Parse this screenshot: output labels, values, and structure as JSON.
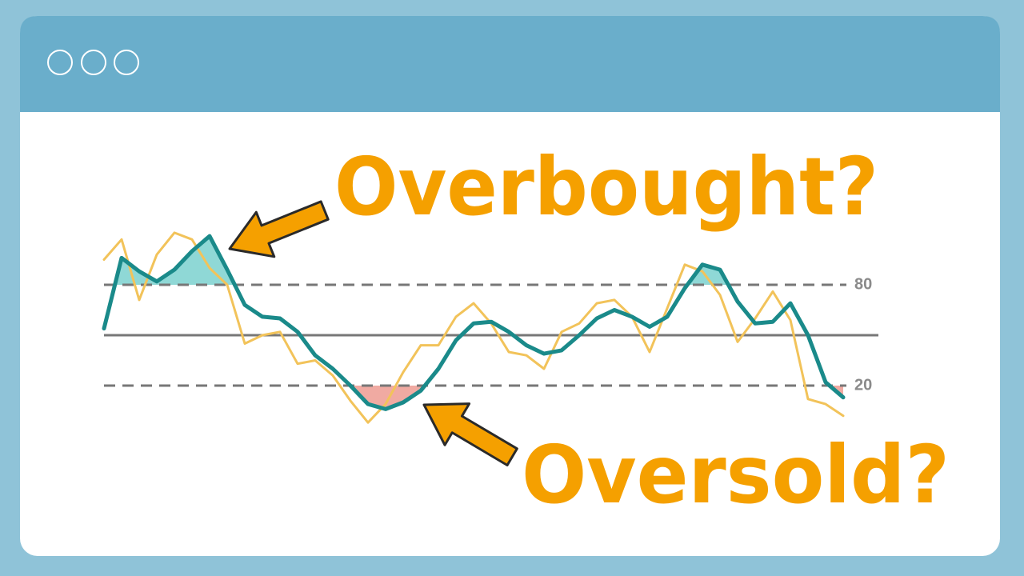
{
  "chart_data": {
    "type": "line",
    "annotations": [
      "Overbought?",
      "Oversold?"
    ],
    "x": [
      0,
      1,
      2,
      3,
      4,
      5,
      6,
      7,
      8,
      9,
      10,
      11,
      12,
      13,
      14,
      15,
      16,
      17,
      18,
      19,
      20,
      21,
      22,
      23,
      24,
      25,
      26,
      27,
      28,
      29,
      30,
      31,
      32,
      33,
      34,
      35,
      36,
      37,
      38,
      39,
      40,
      41,
      42
    ],
    "xlim": [
      0,
      42
    ],
    "ylim": [
      -10,
      120
    ],
    "yticks": [
      20,
      80
    ],
    "midline": 50,
    "series": [
      {
        "color": "#f2c35a",
        "values": [
          95,
          107,
          71,
          98,
          111,
          107,
          90,
          80,
          45,
          50,
          52,
          33,
          35,
          26,
          11,
          -2,
          9,
          28,
          44,
          44,
          61,
          69,
          57,
          40,
          38,
          30,
          52,
          57,
          69,
          71,
          61,
          40,
          66,
          92,
          88,
          74,
          46,
          60,
          76,
          59,
          12,
          9,
          2
        ]
      },
      {
        "color": "#1a8a8a",
        "values": [
          54,
          96,
          88,
          82,
          89,
          100,
          109,
          89,
          68,
          61,
          60,
          52,
          38,
          30,
          20,
          9,
          6,
          10,
          17,
          30,
          47,
          57,
          58,
          52,
          44,
          39,
          41,
          50,
          60,
          65,
          61,
          55,
          61,
          78,
          92,
          89,
          70,
          57,
          58,
          69,
          50,
          22,
          13
        ]
      }
    ],
    "overbought_color": "#8fd8d6",
    "oversold_color": "#f0aaa2"
  }
}
